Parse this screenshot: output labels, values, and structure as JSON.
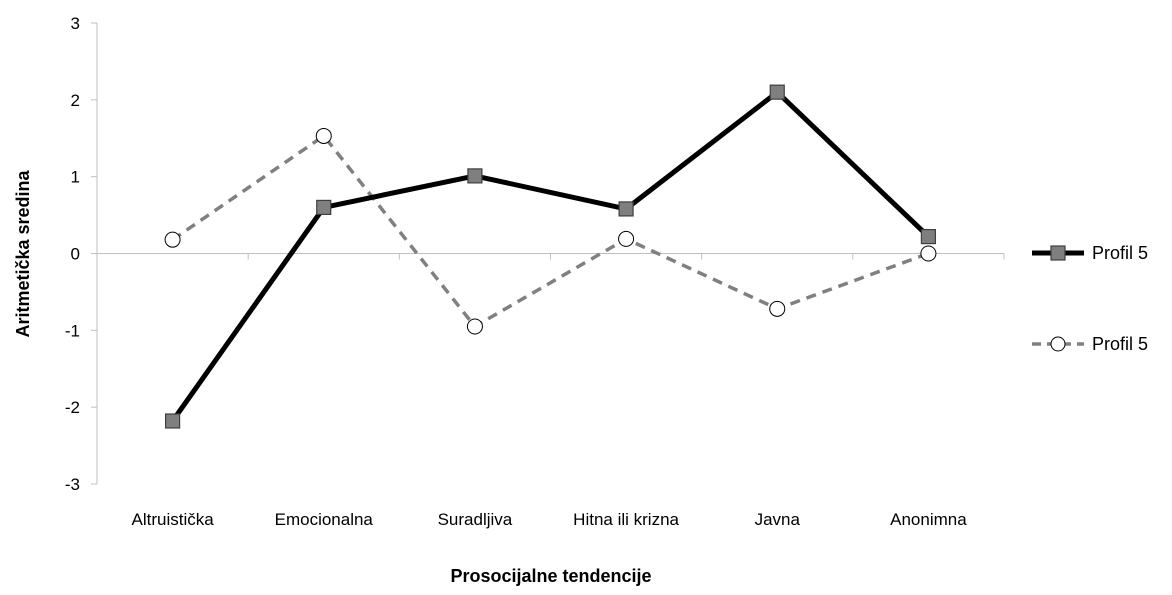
{
  "chart_data": {
    "type": "line",
    "title": "",
    "xlabel": "Prosocijalne tendencije",
    "ylabel": "Aritmetička sredina",
    "categories": [
      "Altruistička",
      "Emocionalna",
      "Suradljiva",
      "Hitna ili krizna",
      "Javna",
      "Anonimna"
    ],
    "ylim": [
      -3,
      3
    ],
    "yticks": [
      "3",
      "2",
      "1",
      "0",
      "-1",
      "-2",
      "-3"
    ],
    "grid": false,
    "legend_position": "right",
    "series": [
      {
        "name": "Profil 5",
        "values": [
          -2.18,
          0.6,
          1.01,
          0.58,
          2.1,
          0.22
        ],
        "color": "#000000",
        "line_style": "solid",
        "marker": "square",
        "marker_fill": "#7f7f7f"
      },
      {
        "name": "Profil 5",
        "values": [
          0.18,
          1.53,
          -0.95,
          0.19,
          -0.72,
          0.0
        ],
        "color": "#808080",
        "line_style": "dashed",
        "marker": "circle",
        "marker_fill": "#ffffff"
      }
    ]
  }
}
